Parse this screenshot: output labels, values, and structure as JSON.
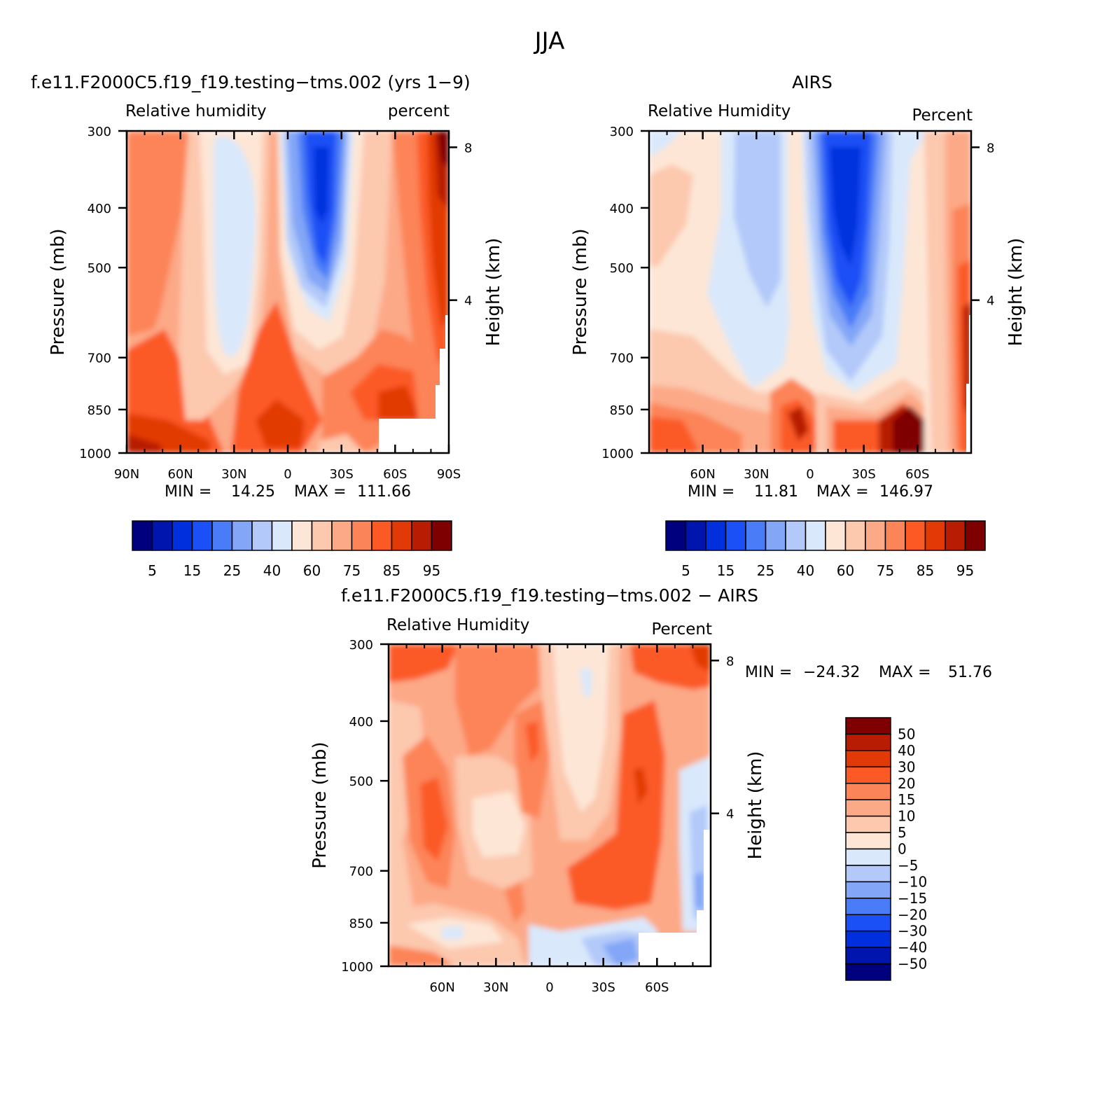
{
  "figure_title": "JJA",
  "palette": {
    "rh": [
      "#00007f",
      "#0015ae",
      "#0030dd",
      "#1a50f5",
      "#4a7cf7",
      "#83a6f7",
      "#b2c9f9",
      "#d9e8fb",
      "#fde6d6",
      "#fcc8ae",
      "#fca987",
      "#fc8459",
      "#fb5a25",
      "#e23a06",
      "#b81c03",
      "#7f0000"
    ],
    "diff": [
      "#00007f",
      "#0015ae",
      "#0030dd",
      "#1a50f5",
      "#4a7cf7",
      "#83a6f7",
      "#b2c9f9",
      "#d9e8fb",
      "#fde6d6",
      "#fcc8ae",
      "#fca987",
      "#fc8459",
      "#fb5a25",
      "#e23a06",
      "#b81c03",
      "#7f0000"
    ],
    "frame": "#000000",
    "missing": "#ffffff"
  },
  "chart_data": [
    {
      "id": "model",
      "type": "heatmap",
      "title": "f.e11.F2000C5.f19_f19.testing−tms.002 (yrs 1−9)",
      "left_label": "Relative humidity",
      "right_label": "percent",
      "xlabel": "",
      "ylabel": "Pressure (mb)",
      "y2label": "Height (km)",
      "x_ticks": [
        "90N",
        "60N",
        "30N",
        "0",
        "30S",
        "60S",
        "90S"
      ],
      "y_ticks": [
        "300",
        "400",
        "500",
        "700",
        "850",
        "1000"
      ],
      "y2_ticks": [
        "8",
        "4"
      ],
      "xlim": [
        90,
        -90
      ],
      "ylim": [
        1000,
        300
      ],
      "y_scale": "log",
      "min_label": "MIN =",
      "min_value": "14.25",
      "max_label": "MAX =",
      "max_value": "111.66",
      "colorbar_orientation": "horizontal",
      "colorbar_labels": [
        "5",
        "15",
        "25",
        "40",
        "60",
        "75",
        "85",
        "95"
      ]
    },
    {
      "id": "airs",
      "type": "heatmap",
      "title": "AIRS",
      "left_label": "Relative Humidity",
      "right_label": "Percent",
      "xlabel": "",
      "ylabel": "Pressure (mb)",
      "y2label": "Height (km)",
      "x_ticks": [
        "60N",
        "30N",
        "0",
        "30S",
        "60S"
      ],
      "y_ticks": [
        "300",
        "400",
        "500",
        "700",
        "850",
        "1000"
      ],
      "y2_ticks": [
        "8",
        "4"
      ],
      "xlim": [
        90,
        -90
      ],
      "ylim": [
        1000,
        300
      ],
      "y_scale": "log",
      "min_label": "MIN =",
      "min_value": "11.81",
      "max_label": "MAX =",
      "max_value": "146.97",
      "colorbar_orientation": "horizontal",
      "colorbar_labels": [
        "5",
        "15",
        "25",
        "40",
        "60",
        "75",
        "85",
        "95"
      ]
    },
    {
      "id": "diff",
      "type": "heatmap",
      "title": "f.e11.F2000C5.f19_f19.testing−tms.002 − AIRS",
      "left_label": "Relative Humidity",
      "right_label": "Percent",
      "xlabel": "",
      "ylabel": "Pressure (mb)",
      "y2label": "Height (km)",
      "x_ticks": [
        "60N",
        "30N",
        "0",
        "30S",
        "60S"
      ],
      "y_ticks": [
        "300",
        "400",
        "500",
        "700",
        "850",
        "1000"
      ],
      "y2_ticks": [
        "8",
        "4"
      ],
      "xlim": [
        90,
        -90
      ],
      "ylim": [
        1000,
        300
      ],
      "y_scale": "log",
      "min_label": "MIN =",
      "min_value": "−24.32",
      "max_label": "MAX =",
      "max_value": "51.76",
      "colorbar_orientation": "vertical",
      "colorbar_labels": [
        "50",
        "40",
        "30",
        "20",
        "15",
        "10",
        "5",
        "0",
        "−5",
        "−10",
        "−15",
        "−20",
        "−30",
        "−40",
        "−50"
      ]
    }
  ]
}
